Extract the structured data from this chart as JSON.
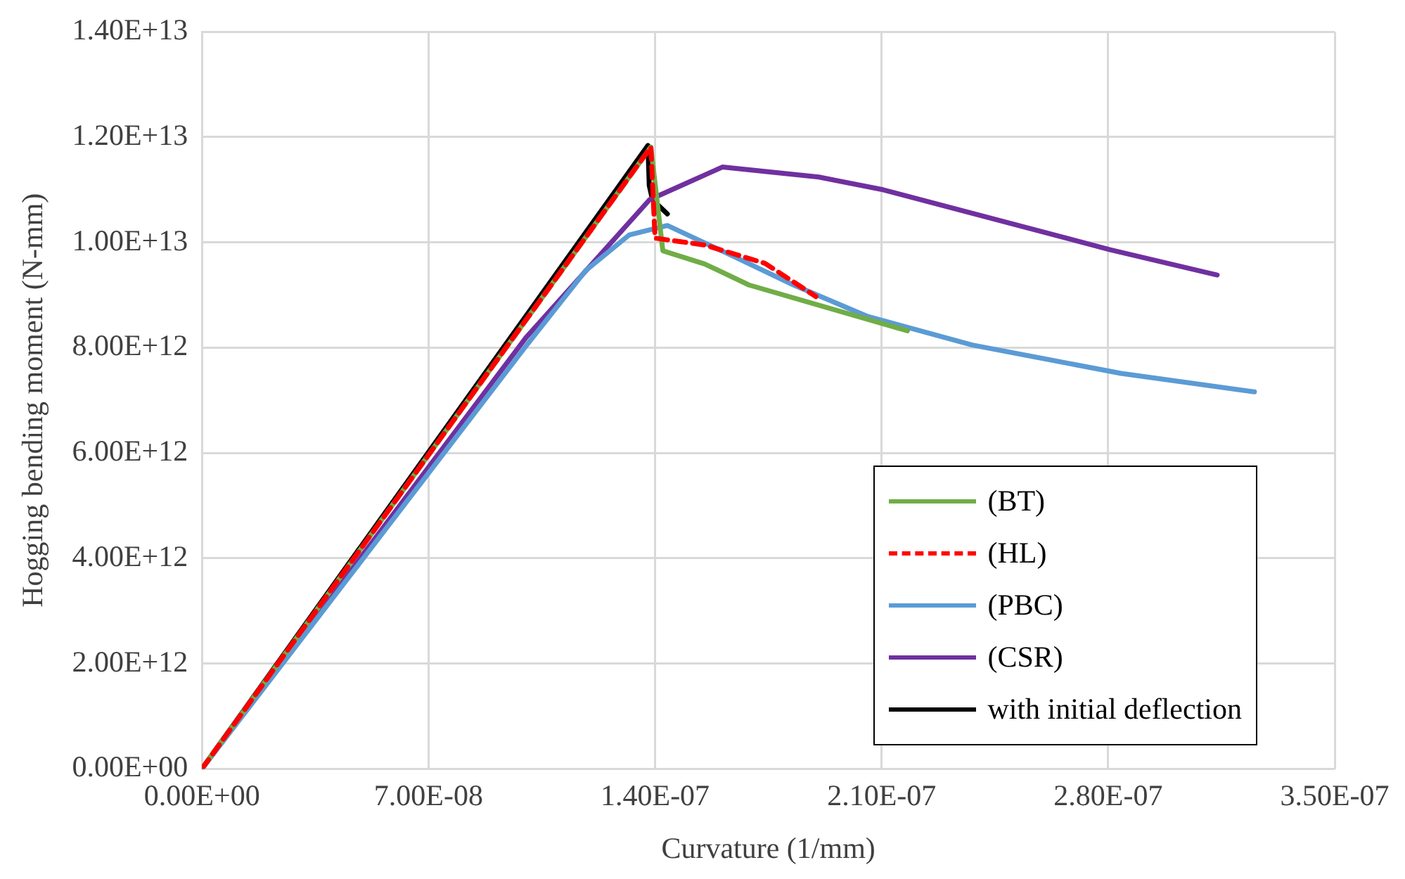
{
  "chart_data": {
    "type": "line",
    "xlabel": "Curvature (1/mm)",
    "ylabel": "Hogging bending moment (N-mm)",
    "xlim": [
      0,
      3.5e-07
    ],
    "xticks": [
      {
        "value": 0,
        "label": "0.00E+00"
      },
      {
        "value": 7e-08,
        "label": "7.00E-08"
      },
      {
        "value": 1.4e-07,
        "label": "1.40E-07"
      },
      {
        "value": 2.1e-07,
        "label": "2.10E-07"
      },
      {
        "value": 2.8e-07,
        "label": "2.80E-07"
      },
      {
        "value": 3.5e-07,
        "label": "3.50E-07"
      }
    ],
    "ylim": [
      0,
      14000000000000.0
    ],
    "yticks": [
      {
        "value": 0,
        "label": "0.00E+00"
      },
      {
        "value": 2000000000000.0,
        "label": "2.00E+12"
      },
      {
        "value": 4000000000000.0,
        "label": "4.00E+12"
      },
      {
        "value": 6000000000000.0,
        "label": "6.00E+12"
      },
      {
        "value": 8000000000000.0,
        "label": "8.00E+12"
      },
      {
        "value": 10000000000000.0,
        "label": "1.00E+13"
      },
      {
        "value": 12000000000000.0,
        "label": "1.20E+13"
      },
      {
        "value": 14000000000000.0,
        "label": "1.40E+13"
      }
    ],
    "grid": true,
    "legend": "bottom right",
    "marker": "none",
    "series": [
      {
        "name": "(BT)",
        "color": "#70ad47",
        "x": [
          0,
          1.387e-07,
          1.424e-07,
          1.553e-07,
          1.69e-07,
          1.92e-07,
          2.18e-07
        ],
        "values": [
          0,
          11810000000000.0,
          9840000000000.0,
          9590000000000.0,
          9190000000000.0,
          8780000000000.0,
          8320000000000.0
        ]
      },
      {
        "name": "(HL)",
        "color": "#ff0000",
        "line_style": "dashed",
        "x": [
          0,
          1.387e-07,
          1.4e-07,
          1.553e-07,
          1.74e-07,
          1.897e-07
        ],
        "values": [
          0,
          11810000000000.0,
          10080000000000.0,
          9950000000000.0,
          9600000000000.0,
          8970000000000.0
        ]
      },
      {
        "name": "(PBC)",
        "color": "#5b9bd5",
        "x": [
          0,
          1.001e-07,
          1.185e-07,
          1.32e-07,
          1.438e-07,
          1.644e-07,
          1.828e-07,
          2.058e-07,
          2.38e-07,
          2.84e-07,
          3.252e-07
        ],
        "values": [
          0,
          8030000000000.0,
          9460000000000.0,
          10140000000000.0,
          10320000000000.0,
          9730000000000.0,
          9190000000000.0,
          8590000000000.0,
          8050000000000.0,
          7510000000000.0,
          7160000000000.0
        ]
      },
      {
        "name": "(CSR)",
        "color": "#7030a0",
        "x": [
          0,
          1.001e-07,
          1.383e-07,
          1.608e-07,
          1.906e-07,
          2.104e-07,
          2.806e-07,
          3.137e-07
        ],
        "values": [
          0,
          8190000000000.0,
          10810000000000.0,
          11430000000000.0,
          11240000000000.0,
          11000000000000.0,
          9860000000000.0,
          9380000000000.0
        ]
      },
      {
        "name": "with initial deflection",
        "color": "#000000",
        "x": [
          0,
          1.378e-07,
          1.382e-07,
          1.392e-07,
          1.438e-07
        ],
        "values": [
          0,
          11840000000000.0,
          11080000000000.0,
          10810000000000.0,
          10540000000000.0
        ]
      }
    ]
  }
}
